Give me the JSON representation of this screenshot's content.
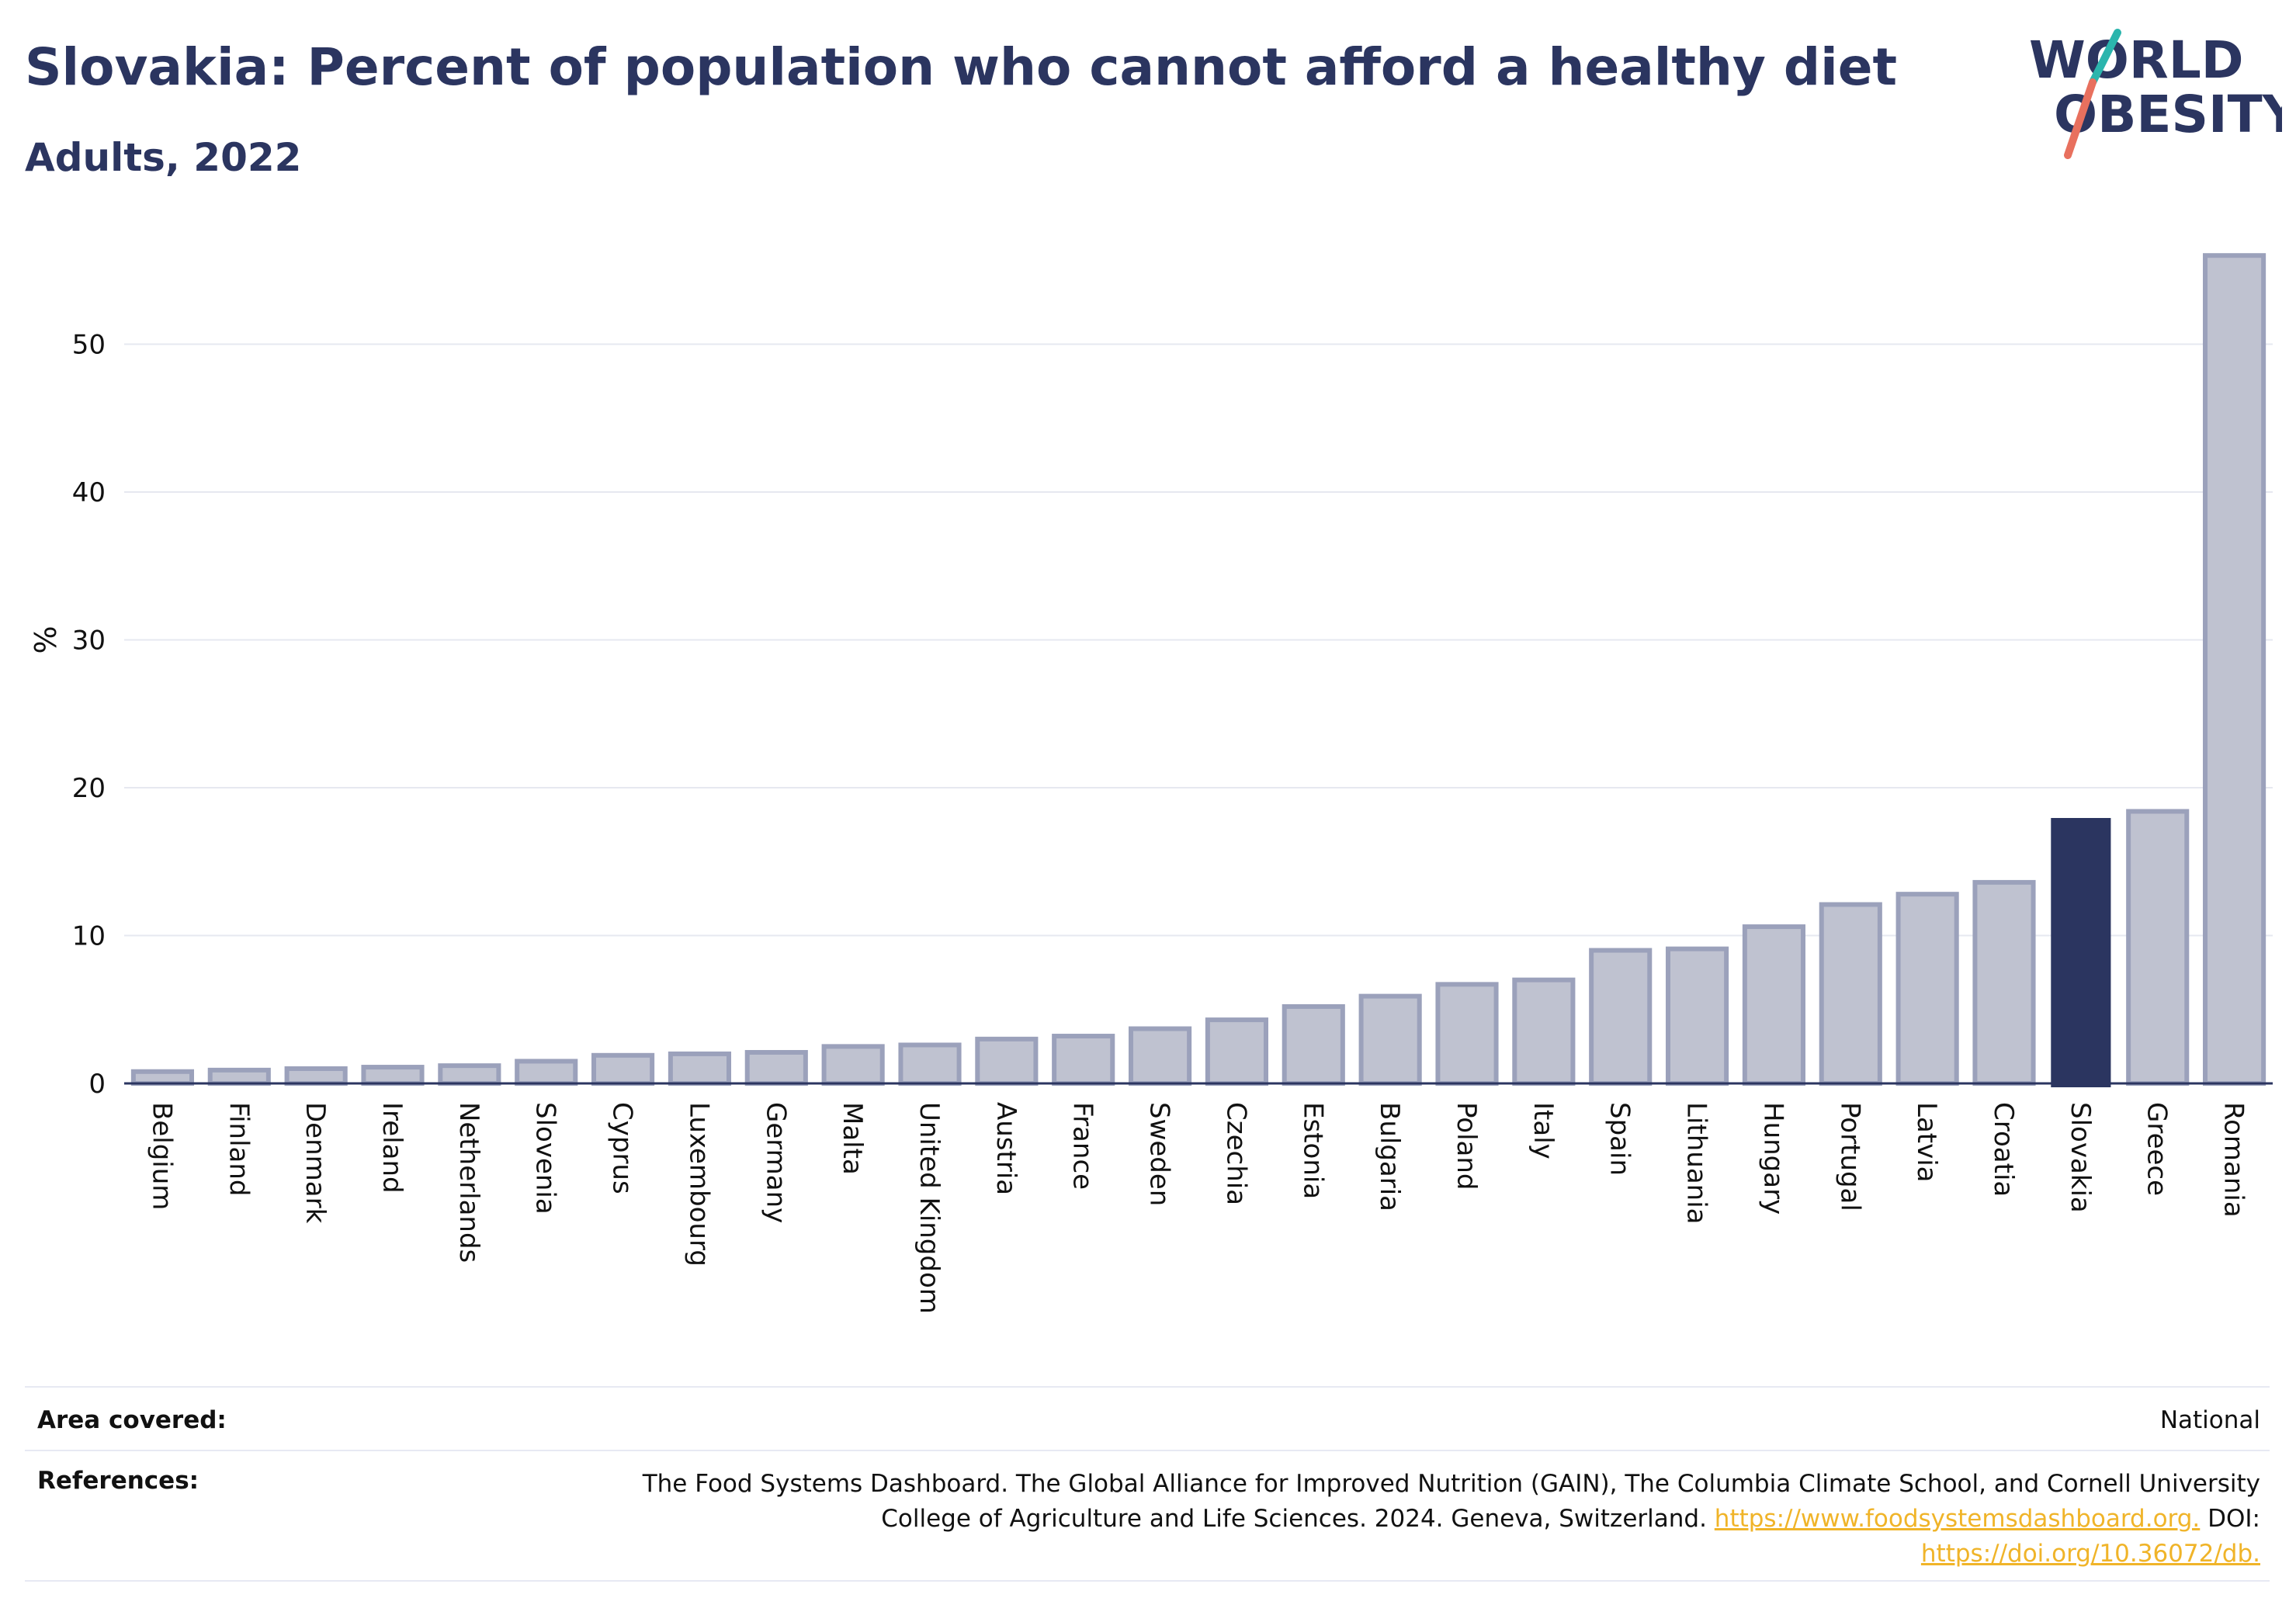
{
  "title": "Slovakia: Percent of population who cannot afford a healthy diet",
  "subtitle": "Adults, 2022",
  "logo": {
    "line1": "WORLD",
    "line2": "OBESITY"
  },
  "colors": {
    "highlight": "#2b3560",
    "bar_fill": "#bfc2d0",
    "bar_stroke": "#9ba1bb",
    "title": "#2b3560",
    "link": "#f0b429"
  },
  "chart_data": {
    "type": "bar",
    "ylabel": "%",
    "ylim": [
      0,
      58
    ],
    "yticks": [
      0,
      10,
      20,
      30,
      40,
      50
    ],
    "grid": true,
    "highlight": "Slovakia",
    "categories": [
      "Belgium",
      "Finland",
      "Denmark",
      "Ireland",
      "Netherlands",
      "Slovenia",
      "Cyprus",
      "Luxembourg",
      "Germany",
      "Malta",
      "United Kingdom",
      "Austria",
      "France",
      "Sweden",
      "Czechia",
      "Estonia",
      "Bulgaria",
      "Poland",
      "Italy",
      "Spain",
      "Lithuania",
      "Hungary",
      "Portugal",
      "Latvia",
      "Croatia",
      "Slovakia",
      "Greece",
      "Romania"
    ],
    "values": [
      0.8,
      0.9,
      1.0,
      1.1,
      1.2,
      1.5,
      1.9,
      2.0,
      2.1,
      2.5,
      2.6,
      3.0,
      3.2,
      3.7,
      4.3,
      5.2,
      5.9,
      6.7,
      7.0,
      9.0,
      9.1,
      10.6,
      12.1,
      12.8,
      13.6,
      17.9,
      18.4,
      56.0
    ]
  },
  "footer": {
    "area_label": "Area covered:",
    "area_value": "National",
    "references_label": "References:",
    "references_text": "The Food Systems Dashboard. The Global Alliance for Improved Nutrition (GAIN), The Columbia Climate School, and Cornell University College of Agriculture and Life Sciences. 2024. Geneva, Switzerland.",
    "references_link1": "https://www.foodsystemsdashboard.org.",
    "references_doi_label": "DOI:",
    "references_link2": "https://doi.org/10.36072/db."
  }
}
